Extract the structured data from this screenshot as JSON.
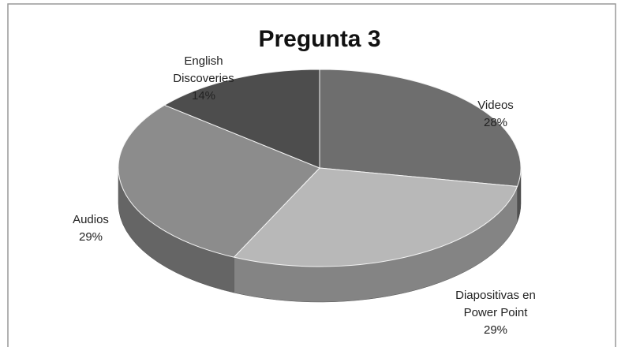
{
  "chart_data": {
    "type": "pie",
    "title": "Pregunta 3",
    "categories": [
      "Videos",
      "Diapositivas en Power Point",
      "Audios",
      "English Discoveries"
    ],
    "values": [
      28,
      29,
      29,
      14
    ],
    "value_labels": [
      "28%",
      "29%",
      "29%",
      "14%"
    ],
    "colors": [
      "#6e6e6e",
      "#b8b8b8",
      "#8c8c8c",
      "#4d4d4d"
    ],
    "three_d": true
  }
}
